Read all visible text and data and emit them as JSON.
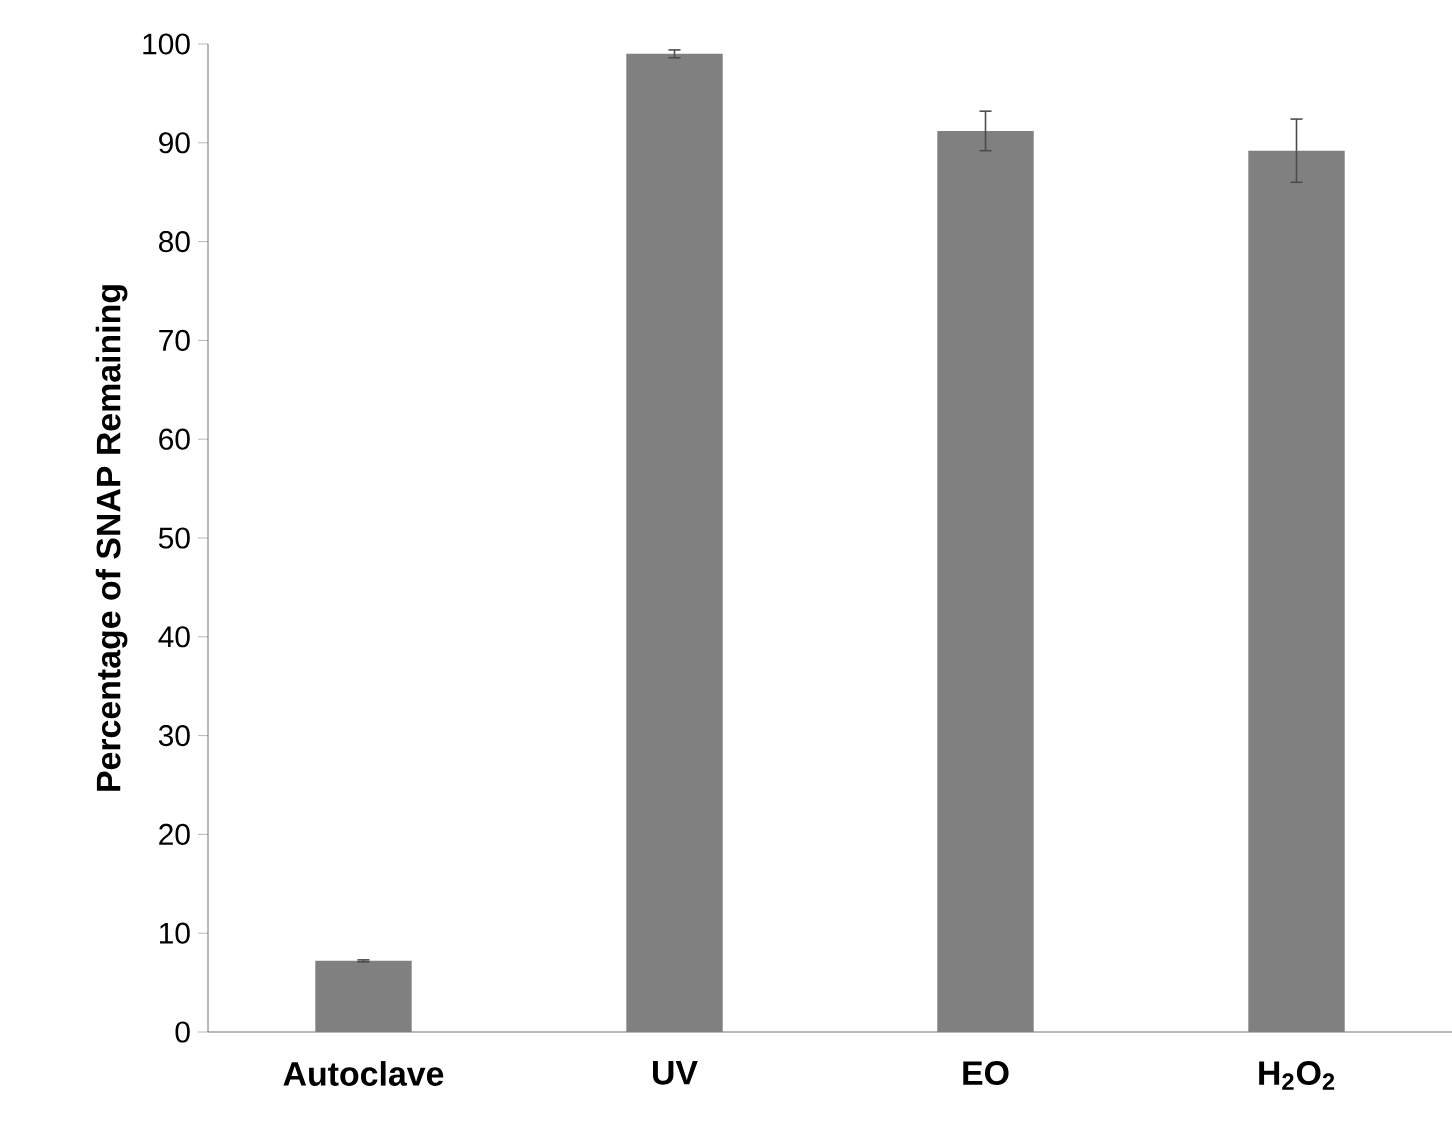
{
  "chart_data": {
    "type": "bar",
    "ylabel": "Percentage of SNAP Remaining",
    "categories": [
      "Autoclave",
      "UV",
      "EO",
      "H$_{2}$O$_{2}$"
    ],
    "values": [
      7.2,
      99.0,
      91.2,
      89.2
    ],
    "errors": [
      0.1,
      0.4,
      2.0,
      3.2
    ],
    "color": "#808080",
    "ylim": [
      0,
      100
    ],
    "yticks": [
      0,
      10,
      20,
      30,
      40,
      50,
      60,
      70,
      80,
      90,
      100
    ]
  }
}
